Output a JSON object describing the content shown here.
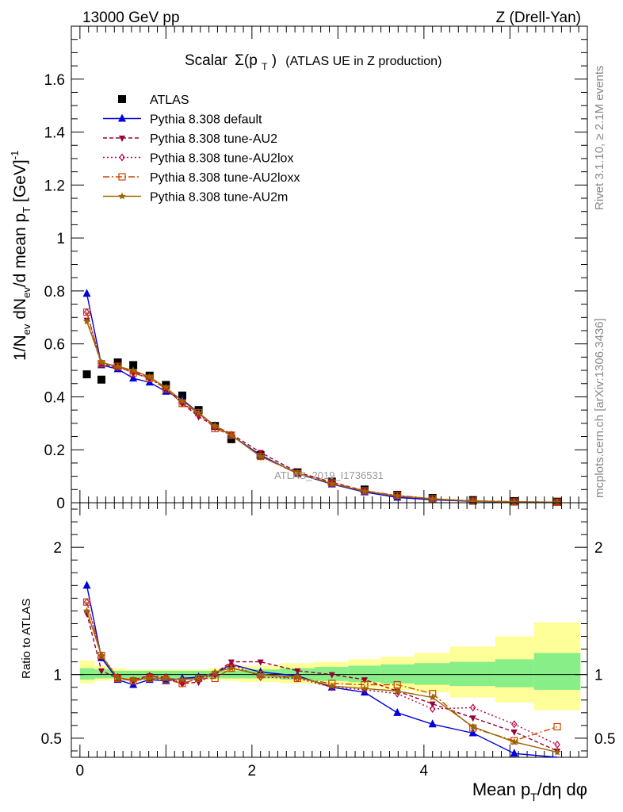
{
  "header": {
    "left": "13000 GeV pp",
    "right": "Z (Drell-Yan)"
  },
  "plot_title": {
    "scalar": "Scalar",
    "sigma": "Σ(p",
    "sub_t": "T",
    "close": ")",
    "rest": "(ATLAS UE in Z production)"
  },
  "side_labels": {
    "rivet": "Rivet 3.1.10, ≥ 2.1M events",
    "mcplots": "mcplots.cern.ch [arXiv:1306.3436]"
  },
  "watermark": "ATLAS_2019_I1736531",
  "y_label_top": {
    "a": "1/N",
    "a_sub": "ev",
    "b": " dN",
    "b_sub": "ev",
    "c": "/d mean p",
    "c_sub": "T",
    "d": " [GeV]",
    "d_sup": "-1"
  },
  "y_label_bottom": "Ratio to ATLAS",
  "x_label": {
    "a": "Mean p",
    "a_sub": "T",
    "b": "/dη dφ"
  },
  "colors": {
    "data": "#000000",
    "default": "#0000dd",
    "au2": "#990033",
    "au2lox": "#bb0044",
    "au2loxx": "#cc4400",
    "au2m": "#996600",
    "band_outer": "#ffff99",
    "band_inner": "#88ee88"
  },
  "chart_data": [
    {
      "type": "scatter",
      "panel": "main",
      "xlim": [
        -0.1,
        5.9
      ],
      "ylim": [
        0,
        1.8
      ],
      "y_ticks": [
        "0",
        "0.2",
        "0.4",
        "0.6",
        "0.8",
        "1",
        "1.2",
        "1.4",
        "1.6"
      ],
      "x_ticks": [
        "0",
        "2",
        "4"
      ],
      "x": [
        0.08,
        0.25,
        0.44,
        0.62,
        0.81,
        1.0,
        1.19,
        1.38,
        1.57,
        1.76,
        2.1,
        2.53,
        2.93,
        3.31,
        3.69,
        4.1,
        4.57,
        5.05,
        5.55
      ],
      "series": [
        {
          "name": "ATLAS",
          "key": "data",
          "marker": "square",
          "dash": "none",
          "values": [
            0.485,
            0.465,
            0.53,
            0.52,
            0.48,
            0.445,
            0.405,
            0.35,
            0.29,
            0.24,
            0.18,
            0.115,
            0.08,
            0.05,
            0.03,
            0.018,
            0.01,
            0.006,
            0.004
          ]
        },
        {
          "name": "Pythia 8.308 default",
          "key": "default",
          "marker": "tri-up",
          "dash": "none",
          "values": [
            0.79,
            0.52,
            0.505,
            0.47,
            0.455,
            0.42,
            0.39,
            0.34,
            0.29,
            0.255,
            0.18,
            0.11,
            0.07,
            0.04,
            0.02,
            0.011,
            0.005,
            0.002,
            0.001
          ]
        },
        {
          "name": "Pythia 8.308 tune-AU2",
          "key": "au2",
          "marker": "tri-down",
          "dash": "5,3",
          "values": [
            0.69,
            0.525,
            0.51,
            0.495,
            0.475,
            0.43,
            0.375,
            0.325,
            0.29,
            0.26,
            0.19,
            0.115,
            0.078,
            0.045,
            0.025,
            0.014,
            0.007,
            0.004,
            0.002
          ]
        },
        {
          "name": "Pythia 8.308 tune-AU2lox",
          "key": "au2lox",
          "marker": "diamond",
          "dash": "2,3",
          "values": [
            0.72,
            0.525,
            0.515,
            0.49,
            0.47,
            0.43,
            0.375,
            0.335,
            0.285,
            0.255,
            0.175,
            0.112,
            0.072,
            0.043,
            0.025,
            0.013,
            0.007,
            0.004,
            0.002
          ]
        },
        {
          "name": "Pythia 8.308 tune-AU2loxx",
          "key": "au2loxx",
          "marker": "square-open",
          "dash": "8,3,2,3",
          "values": [
            0.72,
            0.525,
            0.515,
            0.49,
            0.47,
            0.43,
            0.375,
            0.34,
            0.28,
            0.255,
            0.175,
            0.11,
            0.075,
            0.045,
            0.028,
            0.015,
            0.006,
            0.003,
            0.002
          ]
        },
        {
          "name": "Pythia 8.308 tune-AU2m",
          "key": "au2m",
          "marker": "star",
          "dash": "none",
          "values": [
            0.685,
            0.53,
            0.515,
            0.5,
            0.475,
            0.435,
            0.385,
            0.34,
            0.29,
            0.255,
            0.175,
            0.113,
            0.072,
            0.043,
            0.026,
            0.015,
            0.006,
            0.003,
            0.002
          ]
        }
      ]
    },
    {
      "type": "line",
      "panel": "ratio",
      "xlim": [
        -0.1,
        5.9
      ],
      "ylim": [
        0.35,
        2.35
      ],
      "y_ticks": [
        "0.5",
        "1",
        "2"
      ],
      "x_ticks": [
        "0",
        "2",
        "4"
      ],
      "band_edges": [
        0,
        0.17,
        0.34,
        0.53,
        0.72,
        0.91,
        1.1,
        1.29,
        1.48,
        1.67,
        1.86,
        2.33,
        2.73,
        3.12,
        3.5,
        3.89,
        4.3,
        4.83,
        5.28,
        5.82
      ],
      "band_inner": [
        [
          0.96,
          1.05
        ],
        [
          0.97,
          1.04
        ],
        [
          0.97,
          1.03
        ],
        [
          0.97,
          1.03
        ],
        [
          0.97,
          1.03
        ],
        [
          0.97,
          1.03
        ],
        [
          0.97,
          1.03
        ],
        [
          0.97,
          1.03
        ],
        [
          0.97,
          1.03
        ],
        [
          0.97,
          1.03
        ],
        [
          0.97,
          1.04
        ],
        [
          0.96,
          1.05
        ],
        [
          0.95,
          1.06
        ],
        [
          0.94,
          1.07
        ],
        [
          0.93,
          1.08
        ],
        [
          0.92,
          1.09
        ],
        [
          0.91,
          1.1
        ],
        [
          0.9,
          1.12
        ],
        [
          0.88,
          1.17
        ]
      ],
      "band_outer": [
        [
          0.93,
          1.11
        ],
        [
          0.95,
          1.07
        ],
        [
          0.96,
          1.05
        ],
        [
          0.96,
          1.04
        ],
        [
          0.96,
          1.04
        ],
        [
          0.96,
          1.04
        ],
        [
          0.96,
          1.04
        ],
        [
          0.96,
          1.04
        ],
        [
          0.96,
          1.05
        ],
        [
          0.95,
          1.06
        ],
        [
          0.94,
          1.07
        ],
        [
          0.93,
          1.09
        ],
        [
          0.92,
          1.1
        ],
        [
          0.9,
          1.12
        ],
        [
          0.88,
          1.14
        ],
        [
          0.86,
          1.17
        ],
        [
          0.82,
          1.22
        ],
        [
          0.78,
          1.3
        ],
        [
          0.72,
          1.41
        ]
      ],
      "x": [
        0.08,
        0.25,
        0.44,
        0.62,
        0.81,
        1.0,
        1.19,
        1.38,
        1.57,
        1.76,
        2.1,
        2.53,
        2.93,
        3.31,
        3.69,
        4.1,
        4.57,
        5.05,
        5.55
      ],
      "series": [
        {
          "name": "Pythia 8.308 default",
          "key": "default",
          "marker": "tri-up",
          "dash": "none",
          "values": [
            1.7,
            1.13,
            0.96,
            0.92,
            0.96,
            0.95,
            0.97,
            0.98,
            1.01,
            1.08,
            1.02,
            0.99,
            0.9,
            0.86,
            0.7,
            0.61,
            0.54,
            0.38,
            0.3
          ]
        },
        {
          "name": "Pythia 8.308 tune-AU2",
          "key": "au2",
          "marker": "tri-down",
          "dash": "5,3",
          "values": [
            1.48,
            1.03,
            0.97,
            0.96,
            0.99,
            0.97,
            0.93,
            0.94,
            1.01,
            1.1,
            1.1,
            1.03,
            1.0,
            0.96,
            0.87,
            0.77,
            0.66,
            0.55,
            0.4
          ]
        },
        {
          "name": "Pythia 8.308 tune-AU2lox",
          "key": "au2lox",
          "marker": "diamond",
          "dash": "2,3",
          "values": [
            1.57,
            1.15,
            0.98,
            0.95,
            0.99,
            0.98,
            0.93,
            0.97,
            1.0,
            1.08,
            0.98,
            0.97,
            0.9,
            0.88,
            0.85,
            0.73,
            0.74,
            0.61,
            0.45
          ]
        },
        {
          "name": "Pythia 8.308 tune-AU2loxx",
          "key": "au2loxx",
          "marker": "square-open",
          "dash": "8,3,2,3",
          "values": [
            1.57,
            1.15,
            0.97,
            0.95,
            0.97,
            0.96,
            0.93,
            0.97,
            0.97,
            1.05,
            1.0,
            0.97,
            0.93,
            0.92,
            0.92,
            0.85,
            0.58,
            0.48,
            0.59
          ]
        },
        {
          "name": "Pythia 8.308 tune-AU2m",
          "key": "au2m",
          "marker": "star",
          "dash": "none",
          "values": [
            1.5,
            1.15,
            0.97,
            0.96,
            0.97,
            0.97,
            0.96,
            0.97,
            1.02,
            1.05,
            1.0,
            0.98,
            0.91,
            0.89,
            0.87,
            0.82,
            0.59,
            0.47,
            0.39
          ]
        }
      ]
    }
  ]
}
